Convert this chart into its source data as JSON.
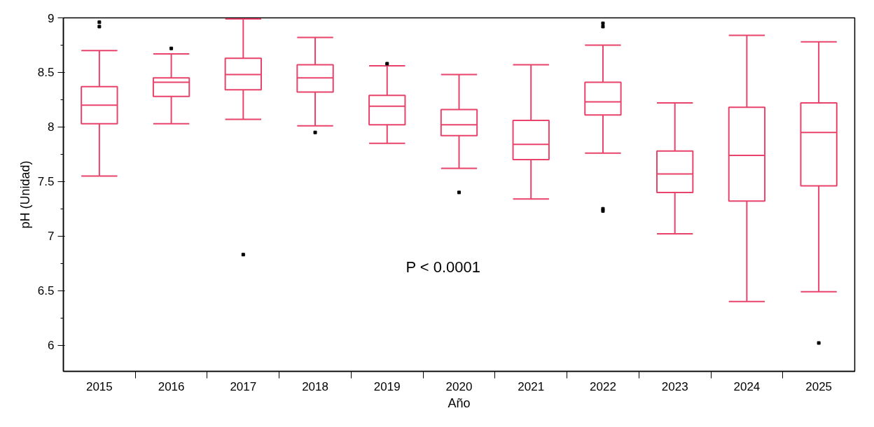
{
  "chart_data": {
    "type": "box",
    "xlabel": "Año",
    "ylabel": "pH (Unidad)",
    "categories": [
      "2015",
      "2016",
      "2017",
      "2018",
      "2019",
      "2020",
      "2021",
      "2022",
      "2023",
      "2024",
      "2025"
    ],
    "series": [
      {
        "color": "#e8436a",
        "boxes": [
          {
            "low": 7.55,
            "q1": 8.03,
            "median": 8.2,
            "q3": 8.37,
            "high": 8.7,
            "outliers": [
              8.96,
              8.92
            ]
          },
          {
            "low": 8.03,
            "q1": 8.28,
            "median": 8.41,
            "q3": 8.45,
            "high": 8.67,
            "outliers": [
              8.72
            ]
          },
          {
            "low": 8.07,
            "q1": 8.34,
            "median": 8.48,
            "q3": 8.63,
            "high": 8.99,
            "outliers": [
              6.83
            ]
          },
          {
            "low": 8.01,
            "q1": 8.32,
            "median": 8.45,
            "q3": 8.57,
            "high": 8.82,
            "outliers": [
              7.95
            ]
          },
          {
            "low": 7.85,
            "q1": 8.02,
            "median": 8.19,
            "q3": 8.29,
            "high": 8.56,
            "outliers": [
              8.58
            ]
          },
          {
            "low": 7.62,
            "q1": 7.92,
            "median": 8.02,
            "q3": 8.16,
            "high": 8.48,
            "outliers": [
              7.4
            ]
          },
          {
            "low": 7.34,
            "q1": 7.7,
            "median": 7.84,
            "q3": 8.06,
            "high": 8.57
          },
          {
            "low": 7.76,
            "q1": 8.11,
            "median": 8.23,
            "q3": 8.41,
            "high": 8.75,
            "outliers": [
              8.95,
              8.92,
              7.25,
              7.23
            ]
          },
          {
            "low": 7.02,
            "q1": 7.4,
            "median": 7.57,
            "q3": 7.78,
            "high": 8.22
          },
          {
            "low": 6.4,
            "q1": 7.32,
            "median": 7.74,
            "q3": 8.18,
            "high": 8.84
          },
          {
            "low": 6.49,
            "q1": 7.46,
            "median": 7.95,
            "q3": 8.22,
            "high": 8.78,
            "outliers": [
              6.02
            ]
          }
        ]
      }
    ],
    "ylim": [
      5.76,
      9
    ],
    "yticks": [
      6,
      6.5,
      7,
      7.5,
      8,
      8.5,
      9
    ],
    "annotations": [
      "P < 0.0001"
    ],
    "grid": false
  }
}
